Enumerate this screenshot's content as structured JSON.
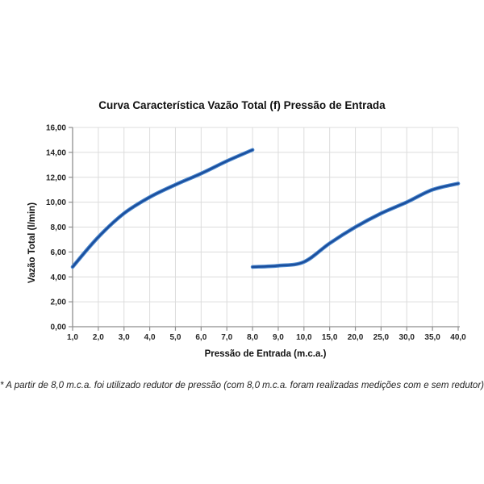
{
  "chart_data": {
    "type": "line",
    "title": "Curva Característica Vazão Total (f) Pressão de Entrada",
    "xlabel": "Pressão de Entrada (m.c.a.)",
    "ylabel": "Vazão Total (l/min)",
    "footnote": "* A partir de 8,0 m.c.a. foi utilizado redutor de pressão (com 8,0 m.c.a. foram realizadas medições com e sem redutor)",
    "categories": [
      "1,0",
      "2,0",
      "3,0",
      "4,0",
      "5,0",
      "6,0",
      "7,0",
      "8,0",
      "9,0",
      "10,0",
      "15,0",
      "20,0",
      "25,0",
      "30,0",
      "35,0",
      "40,0"
    ],
    "y_tick_values": [
      0,
      2,
      4,
      6,
      8,
      10,
      12,
      14,
      16
    ],
    "y_tick_labels": [
      "0,00",
      "2,00",
      "4,00",
      "6,00",
      "8,00",
      "10,00",
      "12,00",
      "14,00",
      "16,00"
    ],
    "ylim": [
      0,
      16
    ],
    "grid": true,
    "legend": "none",
    "series": [
      {
        "start_index": 0,
        "x": [
          1.0,
          2.0,
          3.0,
          4.0,
          5.0,
          6.0,
          7.0,
          8.0
        ],
        "values": [
          4.8,
          7.2,
          9.1,
          10.4,
          11.4,
          12.3,
          13.3,
          14.2
        ]
      },
      {
        "start_index": 7,
        "x": [
          8.0,
          9.0,
          10.0,
          15.0,
          20.0,
          25.0,
          30.0,
          35.0,
          40.0
        ],
        "values": [
          4.8,
          4.9,
          5.2,
          6.7,
          8.0,
          9.1,
          10.0,
          11.0,
          11.5
        ]
      }
    ],
    "colors": {
      "line_core": "#1a4e9d",
      "line_edge": "#4a86cc",
      "grid": "#dcdcdc",
      "axis": "#8e8e8e",
      "label": "#262626"
    }
  }
}
